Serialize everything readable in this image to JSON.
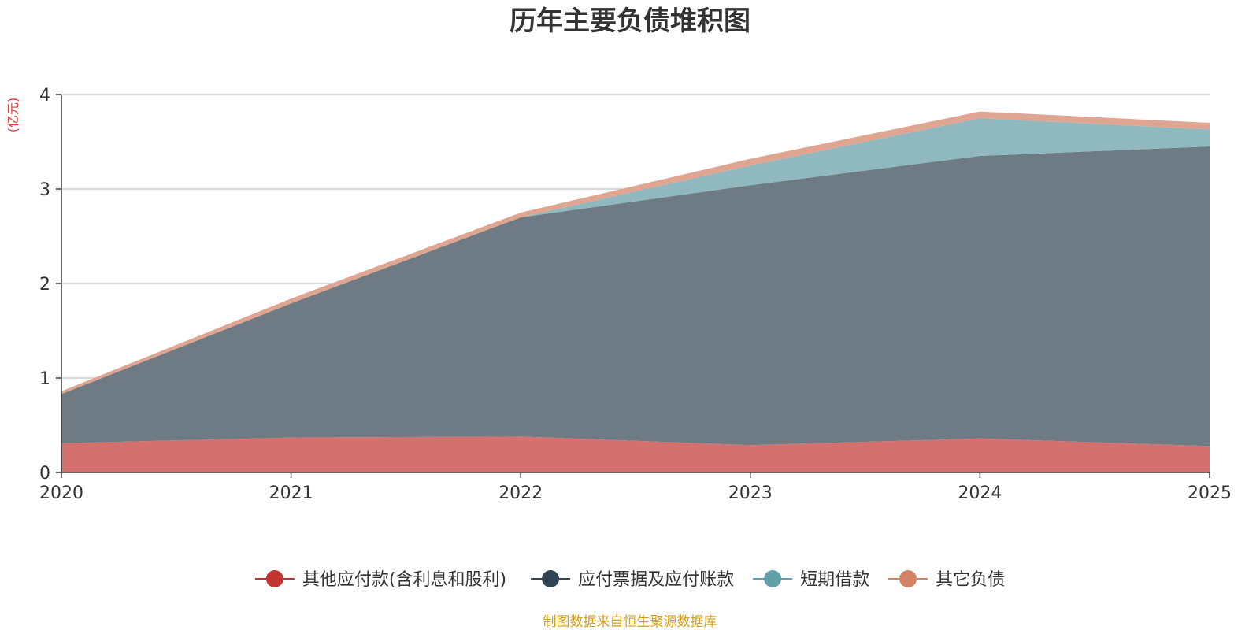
{
  "chart_data": {
    "type": "area",
    "stacked": true,
    "title": "历年主要负债堆积图",
    "unit_label": "(亿元)",
    "x": [
      "2020",
      "2021",
      "2022",
      "2023",
      "2024",
      "2025"
    ],
    "ylim": [
      0,
      4
    ],
    "yticks": [
      "0",
      "1",
      "2",
      "3",
      "4"
    ],
    "grid": true,
    "legend_position": "bottom",
    "series": [
      {
        "name": "其他应付款(含利息和股利)",
        "color": "#c23531",
        "fill": "#d4706d",
        "values": [
          0.31,
          0.37,
          0.38,
          0.29,
          0.36,
          0.28
        ]
      },
      {
        "name": "应付票据及应付账款",
        "color": "#2f4554",
        "fill": "#6e7b85",
        "values": [
          0.52,
          1.42,
          2.32,
          2.75,
          2.99,
          3.17
        ]
      },
      {
        "name": "短期借款",
        "color": "#61a0a8",
        "fill": "#8fb9be",
        "values": [
          0.0,
          0.0,
          0.0,
          0.21,
          0.4,
          0.18
        ]
      },
      {
        "name": "其它负债",
        "color": "#d48265",
        "fill": "#e0a591",
        "values": [
          0.03,
          0.05,
          0.05,
          0.07,
          0.07,
          0.07
        ]
      }
    ],
    "source": "制图数据来自恒生聚源数据库",
    "source_color": "#d4a017",
    "unit_color": "#e83a3a"
  }
}
